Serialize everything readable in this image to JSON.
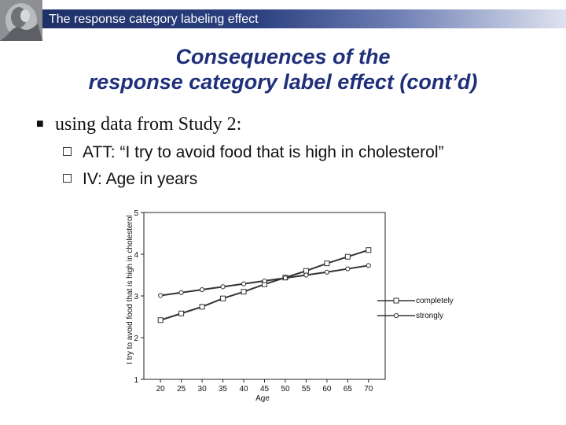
{
  "header": {
    "title": "The response category labeling effect"
  },
  "slide": {
    "title_line1": "Consequences of the",
    "title_line2": "response category label effect (cont’d)"
  },
  "bullets": {
    "main": "using data from Study 2:",
    "sub": [
      "ATT: “I try to avoid food that is high in cholesterol”",
      "IV: Age in years"
    ]
  },
  "colors": {
    "header_dark": "#1c2e63",
    "title": "#1f2f7a"
  },
  "icons": {
    "header_logo": "grayscale-portrait-logo",
    "main_bullet": "square-bullet-icon",
    "sub_bullet": "hollow-square-bullet-icon"
  },
  "chart_data": {
    "type": "line",
    "title": "",
    "xlabel": "Age",
    "ylabel": "I try to avoid food that is high in cholesterol",
    "x": [
      20,
      25,
      30,
      35,
      40,
      45,
      50,
      55,
      60,
      65,
      70
    ],
    "xlim": [
      16,
      74
    ],
    "ylim": [
      1,
      5
    ],
    "yticks": [
      1,
      2,
      3,
      4,
      5
    ],
    "series": [
      {
        "name": "completely",
        "marker": "square",
        "values": [
          2.42,
          2.58,
          2.74,
          2.94,
          3.1,
          3.28,
          3.44,
          3.6,
          3.78,
          3.94,
          4.1
        ]
      },
      {
        "name": "strongly",
        "marker": "circle",
        "values": [
          3.01,
          3.08,
          3.15,
          3.22,
          3.29,
          3.36,
          3.43,
          3.5,
          3.57,
          3.65,
          3.73
        ]
      }
    ],
    "legend_position": "right"
  }
}
